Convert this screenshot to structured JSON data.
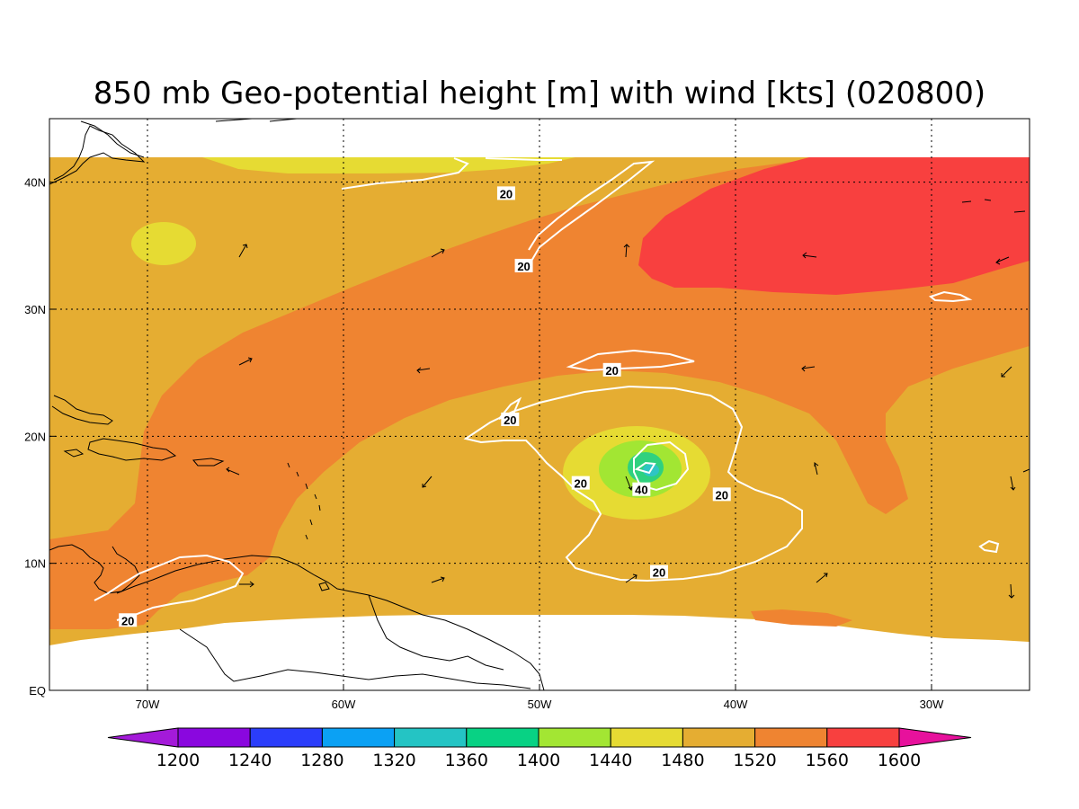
{
  "title": "850 mb Geo-potential height [m] with wind [kts] (020800)",
  "map": {
    "lon_range": [
      -75,
      -25
    ],
    "lat_range": [
      0,
      45
    ],
    "lon_ticks": [
      {
        "value": -70,
        "label": "70W"
      },
      {
        "value": -60,
        "label": "60W"
      },
      {
        "value": -50,
        "label": "50W"
      },
      {
        "value": -40,
        "label": "40W"
      },
      {
        "value": -30,
        "label": "30W"
      }
    ],
    "lat_ticks": [
      {
        "value": 0,
        "label": "EQ"
      },
      {
        "value": 10,
        "label": "10N"
      },
      {
        "value": 20,
        "label": "20N"
      },
      {
        "value": 30,
        "label": "30N"
      },
      {
        "value": 40,
        "label": "40N"
      }
    ],
    "grid": true,
    "fill_colors": {
      "c1480": "#e6db33",
      "c1520": "#e5ad32",
      "c1560": "#ef8431",
      "c1600": "#f8403f",
      "c1440": "#a2e633",
      "c1400": "#2fd17f",
      "c1360": "#2ec5c5"
    },
    "wind_contour_labels": [
      {
        "lon": -51.7,
        "lat": 39.1,
        "text": "20"
      },
      {
        "lon": -50.8,
        "lat": 33.4,
        "text": "20"
      },
      {
        "lon": -46.3,
        "lat": 25.2,
        "text": "20"
      },
      {
        "lon": -51.5,
        "lat": 21.3,
        "text": "20"
      },
      {
        "lon": -47.9,
        "lat": 16.3,
        "text": "20"
      },
      {
        "lon": -44.8,
        "lat": 15.8,
        "text": "40"
      },
      {
        "lon": -40.7,
        "lat": 15.4,
        "text": "20"
      },
      {
        "lon": -43.9,
        "lat": 9.3,
        "text": "20"
      },
      {
        "lon": -71.0,
        "lat": 5.5,
        "text": "20"
      }
    ]
  },
  "colorbar": {
    "colors": [
      "#a41ad9",
      "#8a07df",
      "#2b3dfb",
      "#0ba1f4",
      "#24c4c4",
      "#08d284",
      "#a3e633",
      "#e6db33",
      "#e5ad32",
      "#ef8431",
      "#f8403f",
      "#e7119c"
    ],
    "labels": [
      "1200",
      "1240",
      "1280",
      "1320",
      "1360",
      "1400",
      "1440",
      "1480",
      "1520",
      "1560",
      "1600"
    ]
  }
}
